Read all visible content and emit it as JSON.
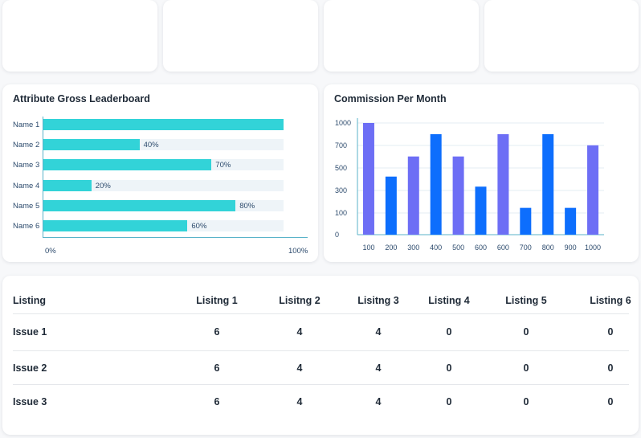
{
  "colors": {
    "teal_bar": "#32d3d8",
    "track": "#eef4f8",
    "purple_bar": "#6d6ef5",
    "blue_bar": "#0d6efd",
    "axis": "#5ab3c9"
  },
  "leaderboard": {
    "title": "Attribute Gross Leaderboard",
    "axis_start": "0%",
    "axis_end": "100%",
    "rows": [
      {
        "name": "Name 1",
        "value": 1.0,
        "label": ""
      },
      {
        "name": "Name 2",
        "value": 0.4,
        "label": "40%"
      },
      {
        "name": "Name 3",
        "value": 0.7,
        "label": "70%"
      },
      {
        "name": "Name 4",
        "value": 0.2,
        "label": "20%"
      },
      {
        "name": "Name 5",
        "value": 0.8,
        "label": "80%"
      },
      {
        "name": "Name 6",
        "value": 0.6,
        "label": "60%"
      }
    ]
  },
  "commission": {
    "title": "Commission Per Month",
    "y_ticks": [
      "1000",
      "700",
      "500",
      "300",
      "100",
      "0"
    ],
    "chart_data": {
      "type": "bar",
      "categories": [
        "100",
        "200",
        "300",
        "400",
        "500",
        "600",
        "600",
        "700",
        "800",
        "900",
        "1000"
      ],
      "values": [
        1000,
        520,
        700,
        900,
        700,
        430,
        900,
        240,
        900,
        240,
        800
      ],
      "bar_colors": [
        "purple",
        "blue",
        "purple",
        "blue",
        "purple",
        "blue",
        "purple",
        "blue",
        "blue",
        "blue",
        "purple"
      ],
      "ylim": [
        0,
        1000
      ]
    }
  },
  "table": {
    "headers": [
      "Listing",
      "Lisitng 1",
      "Lisitng 2",
      "Lisitng 3",
      "Listing 4",
      "Listing 5",
      "Listing 6"
    ],
    "rows": [
      [
        "Issue 1",
        "6",
        "4",
        "4",
        "0",
        "0",
        "0"
      ],
      [
        "Issue 2",
        "6",
        "4",
        "4",
        "0",
        "0",
        "0"
      ],
      [
        "Issue 3",
        "6",
        "4",
        "4",
        "0",
        "0",
        "0"
      ]
    ]
  }
}
